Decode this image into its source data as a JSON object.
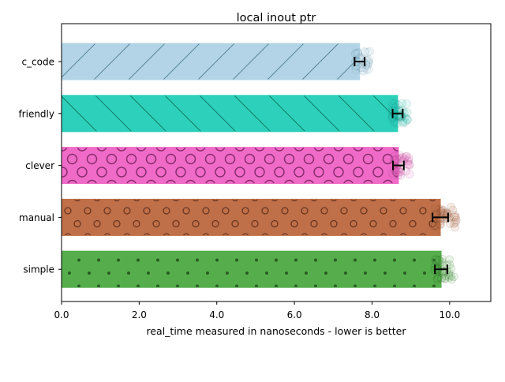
{
  "chart_data": {
    "type": "bar",
    "orientation": "horizontal",
    "title": "local inout ptr",
    "xlabel": "real_time measured in nanoseconds - lower is better",
    "ylabel": "",
    "xlim": [
      0,
      11.06
    ],
    "xticks": [
      0,
      2,
      4,
      6,
      8,
      10
    ],
    "xtick_labels": [
      "0.0",
      "2.0",
      "4.0",
      "6.0",
      "8.0",
      "10.0"
    ],
    "grid": false,
    "categories": [
      "c_code",
      "friendly",
      "clever",
      "manual",
      "simple"
    ],
    "values": [
      7.68,
      8.66,
      8.68,
      9.76,
      9.78
    ],
    "errors": [
      0.13,
      0.13,
      0.14,
      0.2,
      0.16
    ],
    "colors": [
      "#b3d4e6",
      "#2dd1bb",
      "#f06bc8",
      "#c07048",
      "#55ae4b"
    ],
    "hatch_colors": [
      "#5a8899",
      "#147a6c",
      "#8a2d70",
      "#6b3520",
      "#2a5a24"
    ],
    "hatches": [
      "/",
      "\\",
      "O",
      "o",
      "."
    ]
  }
}
